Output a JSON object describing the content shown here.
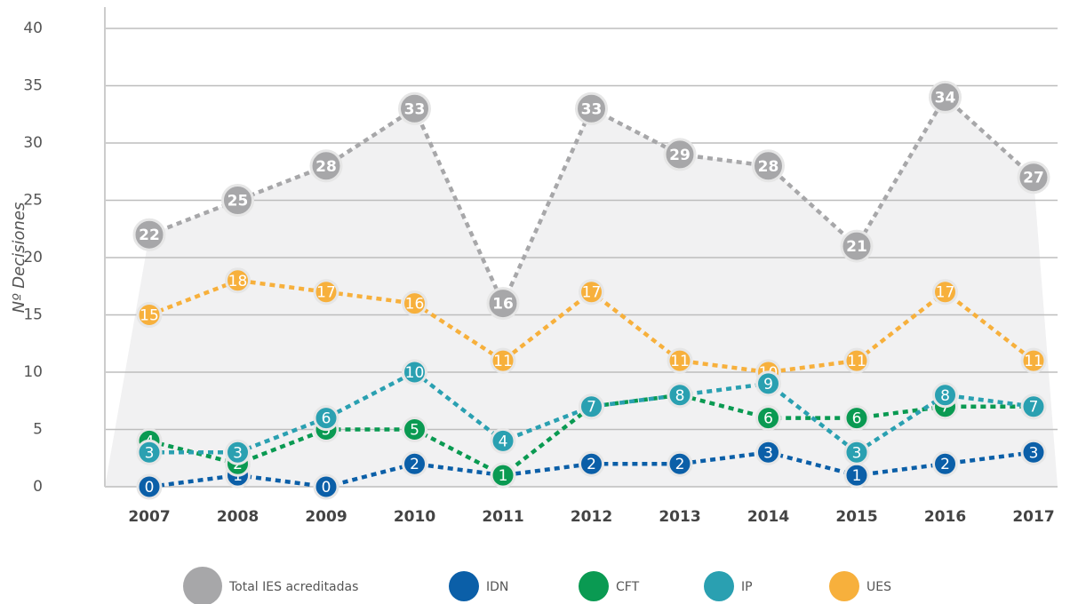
{
  "chart_data": {
    "type": "line",
    "y_label": "Nº Decisiones",
    "categories": [
      "2007",
      "2008",
      "2009",
      "2010",
      "2011",
      "2012",
      "2013",
      "2014",
      "2015",
      "2016",
      "2017"
    ],
    "series": [
      {
        "name": "Total IES acreditadas",
        "color": "#a7a7a9",
        "values": [
          22,
          25,
          28,
          33,
          16,
          33,
          29,
          28,
          21,
          34,
          27
        ]
      },
      {
        "name": "UES",
        "color": "#f7b03c",
        "values": [
          15,
          18,
          17,
          16,
          11,
          17,
          11,
          10,
          11,
          17,
          11
        ]
      },
      {
        "name": "IDN",
        "color": "#0b5fa8",
        "values": [
          0,
          1,
          0,
          2,
          1,
          2,
          2,
          3,
          1,
          2,
          3
        ]
      },
      {
        "name": "CFT",
        "color": "#0a9a52",
        "values": [
          4,
          2,
          5,
          5,
          1,
          7,
          8,
          6,
          6,
          7,
          7
        ]
      },
      {
        "name": "IP",
        "color": "#2aa0b1",
        "values": [
          3,
          3,
          6,
          10,
          4,
          7,
          8,
          9,
          3,
          8,
          7
        ]
      }
    ],
    "legend_order": [
      "Total IES acreditadas",
      "IDN",
      "CFT",
      "IP",
      "UES"
    ],
    "ylim": [
      0,
      40
    ],
    "yticks": [
      0,
      5,
      10,
      15,
      20,
      25,
      30,
      35,
      40
    ],
    "grid": true
  }
}
